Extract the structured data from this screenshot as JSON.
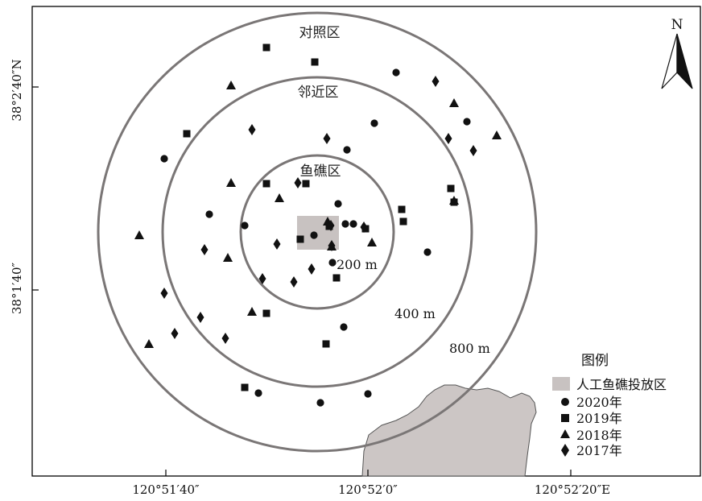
{
  "zones": {
    "control": "对照区",
    "adjacent": "邻近区",
    "reef": "鱼礁区"
  },
  "rings": {
    "r200": "200 m",
    "r400": "400 m",
    "r800": "800 m"
  },
  "axes": {
    "x_ticks": [
      "120°51′40″",
      "120°52′0″",
      "120°52′20″E"
    ],
    "y_ticks": [
      "38°2′40″N",
      "38°1′40″"
    ]
  },
  "north": "N",
  "legend": {
    "title": "图例",
    "reef_area": "人工鱼礁投放区",
    "y2020": "2020年",
    "y2019": "2019年",
    "y2018": "2018年",
    "y2017": "2017年"
  },
  "colors": {
    "ring": "#7a7676",
    "reef_area": "#c8c2c1",
    "land": "#ccc6c5",
    "marker": "#111111"
  },
  "icons": {
    "north_arrow": "north-arrow-icon"
  }
}
